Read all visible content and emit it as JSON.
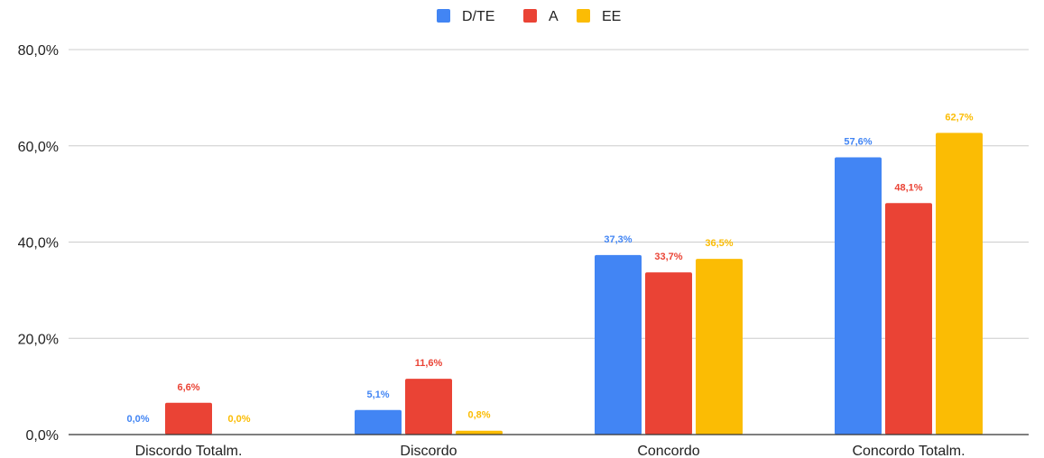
{
  "chart_data": {
    "type": "bar",
    "categories": [
      "Discordo Totalm.",
      "Discordo",
      "Concordo",
      "Concordo Totalm."
    ],
    "series": [
      {
        "name": "D/TE",
        "color": "#4285f4",
        "values": [
          0.0,
          5.1,
          37.3,
          57.6
        ],
        "labels": [
          "0,0%",
          "5,1%",
          "37,3%",
          "57,6%"
        ]
      },
      {
        "name": "A",
        "color": "#ea4335",
        "values": [
          6.6,
          11.6,
          33.7,
          48.1
        ],
        "labels": [
          "6,6%",
          "11,6%",
          "33,7%",
          "48,1%"
        ]
      },
      {
        "name": "EE",
        "color": "#fbbc04",
        "values": [
          0.0,
          0.8,
          36.5,
          62.7
        ],
        "labels": [
          "0,0%",
          "0,8%",
          "36,5%",
          "62,7%"
        ]
      }
    ],
    "y_ticks": [
      0,
      20,
      40,
      60,
      80
    ],
    "y_tick_labels": [
      "0,0%",
      "20,0%",
      "40,0%",
      "60,0%",
      "80,0%"
    ],
    "ylim": [
      0,
      80
    ],
    "grid": true,
    "legend_position": "top-center",
    "title": "",
    "xlabel": "",
    "ylabel": ""
  }
}
